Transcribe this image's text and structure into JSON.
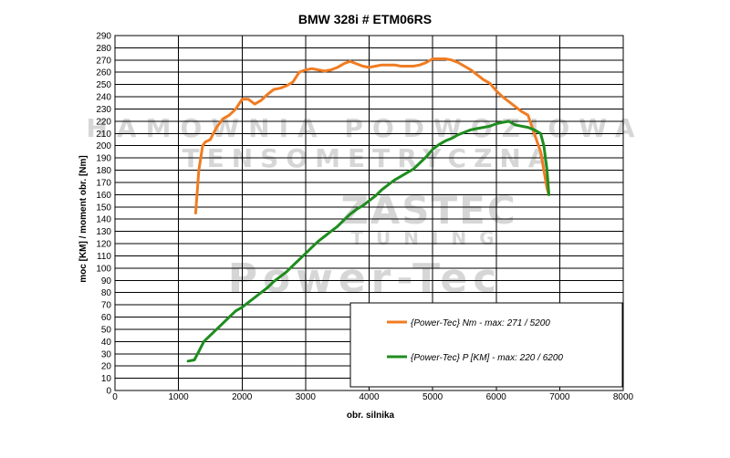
{
  "chart_data": {
    "type": "line",
    "title": "BMW 328i # ETM06RS",
    "xlabel": "obr. silnika",
    "ylabel": "moc [KM] / moment obr. [Nm]",
    "xlim": [
      0,
      8000
    ],
    "ylim": [
      0,
      290
    ],
    "xticks": [
      "0",
      "1000",
      "2000",
      "3000",
      "4000",
      "5000",
      "6000",
      "7000",
      "8000"
    ],
    "yticks": [
      "0",
      "10",
      "20",
      "30",
      "40",
      "50",
      "60",
      "70",
      "80",
      "90",
      "100",
      "110",
      "120",
      "130",
      "140",
      "150",
      "160",
      "170",
      "180",
      "190",
      "200",
      "210",
      "220",
      "230",
      "240",
      "250",
      "260",
      "270",
      "280",
      "290"
    ],
    "grid": true,
    "legend_position": "bottom-right",
    "watermark": [
      "HAMOWNIA PODWOZIOWA",
      "TENSOMETRYCZNA",
      "ZASTEC",
      "TUNING",
      "Power-Tec"
    ],
    "series": [
      {
        "name": "{Power-Tec} Nm - max: 271 / 5200",
        "color": "#f07c22",
        "x": [
          1270,
          1320,
          1380,
          1420,
          1500,
          1600,
          1700,
          1800,
          1900,
          2000,
          2100,
          2200,
          2300,
          2400,
          2500,
          2600,
          2700,
          2800,
          2900,
          3000,
          3100,
          3200,
          3300,
          3400,
          3500,
          3600,
          3700,
          3800,
          3900,
          4000,
          4100,
          4200,
          4300,
          4400,
          4500,
          4600,
          4700,
          4800,
          4900,
          5000,
          5100,
          5200,
          5300,
          5400,
          5500,
          5600,
          5700,
          5800,
          5900,
          6000,
          6100,
          6200,
          6300,
          6400,
          6500,
          6600,
          6700,
          6750,
          6800,
          6830
        ],
        "y": [
          145,
          180,
          200,
          203,
          205,
          215,
          222,
          225,
          230,
          238,
          238,
          234,
          237,
          242,
          246,
          247,
          249,
          252,
          260,
          262,
          263,
          262,
          261,
          262,
          264,
          267,
          269,
          267,
          265,
          264,
          265,
          266,
          266,
          266,
          265,
          265,
          265,
          266,
          268,
          271,
          271,
          271,
          270,
          268,
          265,
          262,
          258,
          254,
          251,
          245,
          240,
          236,
          232,
          228,
          225,
          210,
          195,
          180,
          165,
          160
        ]
      },
      {
        "name": "{Power-Tec} P [KM] - max: 220 / 6200",
        "color": "#1f8c1f",
        "x": [
          1150,
          1250,
          1300,
          1400,
          1500,
          1600,
          1700,
          1800,
          1900,
          2000,
          2100,
          2200,
          2300,
          2400,
          2500,
          2600,
          2700,
          2800,
          2900,
          3000,
          3100,
          3200,
          3300,
          3400,
          3500,
          3600,
          3700,
          3800,
          3900,
          4000,
          4100,
          4200,
          4300,
          4400,
          4500,
          4600,
          4700,
          4800,
          4900,
          5000,
          5100,
          5200,
          5300,
          5400,
          5500,
          5600,
          5700,
          5800,
          5900,
          6000,
          6100,
          6200,
          6300,
          6400,
          6500,
          6600,
          6700,
          6750,
          6800,
          6830
        ],
        "y": [
          24,
          25,
          30,
          40,
          45,
          50,
          55,
          60,
          65,
          68,
          72,
          76,
          80,
          84,
          89,
          93,
          97,
          102,
          107,
          112,
          117,
          122,
          126,
          130,
          134,
          139,
          144,
          148,
          151,
          155,
          159,
          164,
          168,
          172,
          175,
          178,
          181,
          186,
          191,
          197,
          201,
          204,
          206,
          209,
          211,
          213,
          214,
          215,
          216,
          218,
          219,
          220,
          217,
          216,
          215,
          213,
          210,
          200,
          180,
          160
        ]
      }
    ]
  }
}
